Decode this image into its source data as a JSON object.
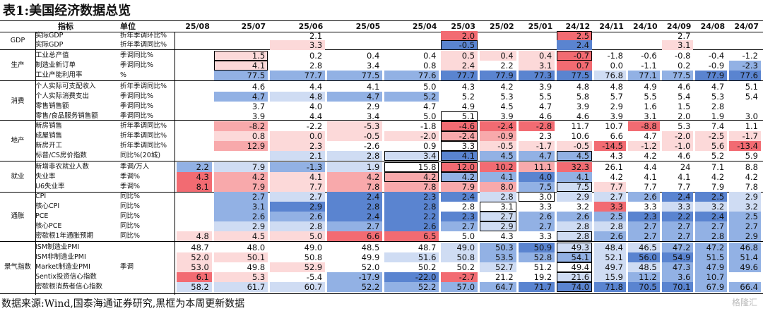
{
  "title": "表1:美国经济数据总览",
  "headers": {
    "indicator": "指标",
    "unit": "单位",
    "months": [
      "25/08",
      "25/07",
      "25/06",
      "25/05",
      "25/04",
      "25/03",
      "25/02",
      "25/01",
      "24/12",
      "24/11",
      "24/10",
      "24/09",
      "24/08",
      "24/07"
    ]
  },
  "colors": {
    "red_strong": "#f26b72",
    "red_mid": "#f8a9ab",
    "red_light": "#fcd9d9",
    "blue_strong": "#5a84d0",
    "blue_mid": "#92b1e4",
    "blue_light": "#cfdcf3"
  },
  "categories": [
    "GDP",
    "生产",
    "消费",
    "地产",
    "就业",
    "通胀",
    "景气指数"
  ],
  "rows": [
    {
      "cat": 0,
      "ind": "实际GDP",
      "unit": "折年季调环比%",
      "v": [
        "",
        "",
        "2.1",
        "",
        "",
        "2.0",
        "",
        "",
        "2.5",
        "",
        "",
        "2.7",
        "",
        ""
      ],
      "c": [
        "",
        "",
        "",
        "",
        "",
        "rs",
        "",
        "",
        "rs",
        "",
        "",
        "",
        "",
        ""
      ]
    },
    {
      "cat": 0,
      "ind": "实际GDP",
      "unit": "折年季调同比%",
      "v": [
        "",
        "",
        "3.3",
        "",
        "",
        "-0.5",
        "",
        "",
        "2.4",
        "",
        "",
        "3.1",
        "",
        ""
      ],
      "c": [
        "",
        "",
        "rl",
        "",
        "",
        "bs",
        "",
        "",
        "bs",
        "",
        "",
        "rl",
        "",
        ""
      ]
    },
    {
      "cat": 1,
      "ind": "工业总产值",
      "unit": "季调同比%",
      "v": [
        "",
        "1.5",
        "0.2",
        "0.4",
        "0.4",
        "0.5",
        "0.4",
        "0.4",
        "-0.7",
        "-1.8",
        "-0.6",
        "-0.8",
        "-0.4",
        "-1.2"
      ],
      "c": [
        "",
        "rl",
        "",
        "",
        "",
        "rl",
        "rl",
        "rl",
        "rs",
        "",
        "",
        "",
        "",
        ""
      ]
    },
    {
      "cat": 1,
      "ind": "制造业新订单",
      "unit": "季调同比%",
      "v": [
        "",
        "4.1",
        "2.8",
        "3.4",
        "0.8",
        "2.4",
        "2.2",
        "3.1",
        "0.7",
        "0.0",
        "-1.1",
        "0.2",
        "-0.9",
        "-2.3"
      ],
      "c": [
        "",
        "rl",
        "",
        "",
        "",
        "rl",
        "",
        "rl",
        "rs",
        "",
        "",
        "",
        "",
        "bm"
      ]
    },
    {
      "cat": 1,
      "ind": "工业产能利用率",
      "unit": "%",
      "v": [
        "",
        "77.5",
        "77.7",
        "77.5",
        "77.6",
        "77.7",
        "77.9",
        "77.3",
        "77.5",
        "76.8",
        "77.1",
        "77.5",
        "77.9",
        "77.6"
      ],
      "c": [
        "",
        "bm",
        "bm",
        "bm",
        "bm",
        "bs",
        "bs",
        "bs",
        "bs",
        "bl",
        "bm",
        "bm",
        "bs",
        "bs"
      ]
    },
    {
      "cat": 2,
      "ind": "个人实际可支配收入",
      "unit": "折年季调同比%",
      "v": [
        "",
        "4.6",
        "4.4",
        "4.1",
        "5.0",
        "4.3",
        "4.2",
        "3.9",
        "4.8",
        "4.8",
        "4.9",
        "4.6",
        "4.7",
        "5.1"
      ],
      "c": [
        "",
        "",
        "",
        "",
        "",
        "",
        "",
        "",
        "",
        "",
        "",
        "",
        "",
        ""
      ]
    },
    {
      "cat": 2,
      "ind": "个人实际消费支出",
      "unit": "季调同比%",
      "v": [
        "",
        "4.7",
        "4.8",
        "4.7",
        "5.2",
        "5.2",
        "5.3",
        "5.5",
        "5.8",
        "5.7",
        "5.5",
        "5.4",
        "5.3",
        "5.4"
      ],
      "c": [
        "",
        "bm",
        "bl",
        "bm",
        "bm",
        "",
        "",
        "",
        "",
        "",
        "",
        "",
        "",
        ""
      ]
    },
    {
      "cat": 2,
      "ind": "零售销售额",
      "unit": "季调同比%",
      "v": [
        "",
        "3.7",
        "4.0",
        "2.9",
        "4.7",
        "4.9",
        "4.5",
        "4.7",
        "3.9",
        "2.9",
        "1.6",
        "1.5",
        "2.8",
        ""
      ],
      "c": [
        "",
        "",
        "",
        "",
        "",
        "",
        "",
        "",
        "",
        "",
        "",
        "",
        "",
        ""
      ]
    },
    {
      "cat": 2,
      "ind": "零售/食品服务销售额",
      "unit": "季调同比%",
      "v": [
        "",
        "3.9",
        "4.4",
        "3.4",
        "5.0",
        "5.1",
        "3.9",
        "4.6",
        "4.6",
        "3.9",
        "3.1",
        "2.0",
        "1.9",
        "3.0"
      ],
      "c": [
        "",
        "",
        "",
        "",
        "",
        "",
        "",
        "",
        "",
        "",
        "",
        "",
        "",
        ""
      ]
    },
    {
      "cat": 3,
      "ind": "新房销售",
      "unit": "折年季调同比%",
      "v": [
        "",
        "-8.2",
        "-2.2",
        "-5.3",
        "-1.8",
        "-4.6",
        "-2.4",
        "-2.8",
        "11.7",
        "10.7",
        "-8.8",
        "5.3",
        "7.4",
        "1.1"
      ],
      "c": [
        "",
        "rm",
        "",
        "rl",
        "",
        "rs",
        "rs",
        "rs",
        "",
        "",
        "rs",
        "",
        "",
        ""
      ]
    },
    {
      "cat": 3,
      "ind": "成屋销售",
      "unit": "折年季调同比%",
      "v": [
        "",
        "0.8",
        "0.0",
        "-0.5",
        "-2.0",
        "-2.4",
        "-0.9",
        "2.3",
        "10.6",
        "6.6",
        "4.7",
        "-2.0",
        "-2.5",
        "-1.7"
      ],
      "c": [
        "",
        "rl",
        "rl",
        "rl",
        "rl",
        "rm",
        "rm",
        "",
        "",
        "",
        "",
        "rl",
        "rl",
        "rl"
      ]
    },
    {
      "cat": 3,
      "ind": "新房开工",
      "unit": "折年季调同比%",
      "v": [
        "",
        "12.9",
        "2.3",
        "-2.6",
        "0.9",
        "3.3",
        "-0.5",
        "-1.7",
        "-0.5",
        "-14.5",
        "-1.2",
        "-1.0",
        "5.6",
        "-13.4"
      ],
      "c": [
        "",
        "rm",
        "rl",
        "",
        "",
        "",
        "rl",
        "rl",
        "rl",
        "rs",
        "rl",
        "rl",
        "rl",
        "rs"
      ]
    },
    {
      "cat": 3,
      "ind": "标普/CS房价指数",
      "unit": "同比%(20城)",
      "v": [
        "",
        "",
        "2.1",
        "2.8",
        "3.4",
        "4.1",
        "4.5",
        "4.7",
        "4.5",
        "4.3",
        "4.2",
        "4.6",
        "5.2",
        "5.9"
      ],
      "c": [
        "",
        "",
        "bl",
        "bl",
        "bl",
        "bs",
        "bm",
        "bm",
        "bm",
        "",
        "",
        "",
        "",
        ""
      ]
    },
    {
      "cat": 4,
      "ind": "新增非农就业人数",
      "unit": "季调/万人",
      "v": [
        "2.2",
        "7.9",
        "-1.3",
        "1.9",
        "15.8",
        "12.0",
        "10.2",
        "11.1",
        "32.3",
        "26.1",
        "4.4",
        "24",
        "7.1",
        "8.8"
      ],
      "c": [
        "bm",
        "bl",
        "bm",
        "bl",
        "",
        "rs",
        "rs",
        "rm",
        "rs",
        "",
        "",
        "",
        "",
        ""
      ]
    },
    {
      "cat": 4,
      "ind": "失业率",
      "unit": "季调%",
      "v": [
        "4.3",
        "4.2",
        "4.1",
        "4.2",
        "4.2",
        "4.2",
        "4.1",
        "4.0",
        "4.1",
        "4.2",
        "4.1",
        "4.1",
        "4.2",
        "4.2"
      ],
      "c": [
        "rs",
        "rm",
        "rl",
        "rm",
        "rm",
        "bm",
        "bm",
        "bs",
        "bm",
        "",
        "",
        "",
        "",
        ""
      ]
    },
    {
      "cat": 4,
      "ind": "U6失业率",
      "unit": "季调%",
      "v": [
        "8.1",
        "7.9",
        "7.7",
        "7.8",
        "7.8",
        "7.9",
        "8.0",
        "7.5",
        "7.5",
        "7.7",
        "7.7",
        "7.7",
        "7.9",
        "7.8"
      ],
      "c": [
        "rs",
        "rm",
        "rl",
        "rm",
        "rm",
        "rm",
        "rm",
        "bm",
        "bl",
        "rl",
        "",
        "",
        "",
        ""
      ]
    },
    {
      "cat": 5,
      "ind": "CPI",
      "unit": "同比%",
      "v": [
        "",
        "2.7",
        "2.7",
        "2.4",
        "2.3",
        "2.4",
        "2.8",
        "3.0",
        "2.9",
        "2.7",
        "2.6",
        "2.4",
        "2.5",
        "2.9"
      ],
      "c": [
        "",
        "bm",
        "bl",
        "bs",
        "bs",
        "bs",
        "bl",
        "",
        "bl",
        "bl",
        "bm",
        "bs",
        "bs",
        "bl"
      ]
    },
    {
      "cat": 5,
      "ind": "核心CPI",
      "unit": "同比%",
      "v": [
        "",
        "3.1",
        "2.9",
        "2.8",
        "2.8",
        "2.8",
        "3.1",
        "3.3",
        "3.2",
        "3.3",
        "3.3",
        "3.3",
        "3.2",
        "3.2"
      ],
      "c": [
        "",
        "bm",
        "bs",
        "bs",
        "bs",
        "",
        "",
        "",
        "",
        "rs",
        "",
        "bl",
        "bl",
        "bl"
      ]
    },
    {
      "cat": 5,
      "ind": "PCE",
      "unit": "同比%",
      "v": [
        "",
        "2.6",
        "2.6",
        "2.4",
        "2.2",
        "2.3",
        "2.7",
        "2.6",
        "2.6",
        "2.5",
        "2.3",
        "2.2",
        "2.4",
        "2.5"
      ],
      "c": [
        "",
        "bm",
        "bm",
        "bs",
        "bs",
        "bs",
        "bl",
        "bm",
        "bm",
        "bm",
        "bs",
        "bs",
        "bs",
        "bm"
      ]
    },
    {
      "cat": 5,
      "ind": "核心PCE",
      "unit": "同比%",
      "v": [
        "",
        "2.9",
        "2.8",
        "2.7",
        "2.6",
        "2.7",
        "2.9",
        "2.7",
        "2.8",
        "2.8",
        "2.7",
        "2.7",
        "2.7",
        "2.7"
      ],
      "c": [
        "",
        "bl",
        "bl",
        "bm",
        "bs",
        "bm",
        "bl",
        "bm",
        "bl",
        "bl",
        "bm",
        "bm",
        "bm",
        "bm"
      ]
    },
    {
      "cat": 5,
      "ind": "密歇根1年通胀预期",
      "unit": "同比%",
      "v": [
        "4.8",
        "4.5",
        "5.0",
        "6.6",
        "6.5",
        "5.0",
        "4.3",
        "3.3",
        "2.8",
        "2.6",
        "2.7",
        "2.7",
        "2.8",
        "2.9"
      ],
      "c": [
        "rl",
        "rl",
        "rl",
        "rs",
        "rs",
        "",
        "",
        "",
        "bl",
        "bm",
        "bm",
        "bm",
        "bm",
        "bm"
      ]
    },
    {
      "cat": 6,
      "ind": "ISM制造业PMI",
      "unit": "",
      "v": [
        "48.7",
        "48.0",
        "49.0",
        "48.5",
        "48.7",
        "49.0",
        "50.3",
        "50.9",
        "49.3",
        "48.4",
        "46.5",
        "47.2",
        "47.2",
        "46.8"
      ],
      "c": [
        "",
        "",
        "",
        "",
        "",
        "bl",
        "bm",
        "bs",
        "bl",
        "bl",
        "bl",
        "bm",
        "bm",
        "bm"
      ]
    },
    {
      "cat": 6,
      "ind": "ISM非制造业PMI",
      "unit": "",
      "v": [
        "52.0",
        "50.1",
        "50.8",
        "49.9",
        "51.6",
        "50.8",
        "53.5",
        "52.8",
        "54.1",
        "52.1",
        "56.0",
        "54.9",
        "51.5",
        "51.4"
      ],
      "c": [
        "rl",
        "rl",
        "",
        "",
        "bl",
        "bl",
        "bm",
        "bm",
        "bm",
        "bl",
        "bs",
        "bs",
        "bm",
        "bm"
      ]
    },
    {
      "cat": 6,
      "ind": "Market制造业PMI",
      "unit": "季调",
      "v": [
        "53.0",
        "49.8",
        "52.9",
        "52.0",
        "50.2",
        "50.2",
        "52.7",
        "51.2",
        "49.4",
        "49.7",
        "48.5",
        "47.3",
        "47.9",
        "49.6"
      ],
      "c": [
        "rl",
        "",
        "rl",
        "",
        "",
        "",
        "bl",
        "",
        "",
        "bl",
        "bl",
        "bm",
        "bm",
        "bm"
      ]
    },
    {
      "cat": 6,
      "ind": "Sentix投资信心指数",
      "unit": "",
      "v": [
        "6.1",
        "5.3",
        "-5.4",
        "-17.9",
        "-22.0",
        "-2.7",
        "21.2",
        "19.2",
        "21.6",
        "15.9",
        "11.2",
        "3.6",
        "10.7",
        ""
      ],
      "c": [
        "rs",
        "rl",
        "",
        "bm",
        "bs",
        "rs",
        "",
        "",
        "bl",
        "bl",
        "bm",
        "bm",
        "bm",
        ""
      ]
    },
    {
      "cat": 6,
      "ind": "密歇根消费者信心指数",
      "unit": "",
      "v": [
        "58.2",
        "61.7",
        "60.7",
        "52.2",
        "52.2",
        "57.0",
        "64.7",
        "71.7",
        "74.0",
        "71.8",
        "70.5",
        "70.1",
        "67.9",
        "66.4"
      ],
      "c": [
        "bl",
        "bl",
        "bl",
        "bm",
        "bm",
        "bm",
        "bm",
        "bs",
        "bs",
        "bs",
        "bs",
        "bs",
        "bm",
        "bm"
      ]
    }
  ],
  "boxed": [
    [
      1,
      2
    ],
    [
      1,
      3
    ],
    [
      4,
      12
    ],
    [
      4,
      13
    ],
    [
      4,
      14
    ],
    [
      6,
      17
    ],
    [
      6,
      18
    ],
    [
      6,
      19
    ],
    [
      7,
      16
    ],
    [
      8,
      0
    ],
    [
      8,
      2
    ],
    [
      8,
      12
    ],
    [
      8,
      15
    ],
    [
      8,
      20
    ],
    [
      8,
      21
    ],
    [
      8,
      22
    ],
    [
      8,
      23
    ],
    [
      8,
      24
    ],
    [
      8,
      25
    ],
    [
      5,
      1
    ],
    [
      5,
      8
    ],
    [
      5,
      9
    ],
    [
      5,
      10
    ],
    [
      5,
      11
    ],
    [
      5,
      12
    ],
    [
      5,
      13
    ],
    [
      5,
      14
    ]
  ],
  "source": "数据来源:Wind,国泰海通证券研究,黑框为本周更新数据",
  "watermark": "格隆汇"
}
